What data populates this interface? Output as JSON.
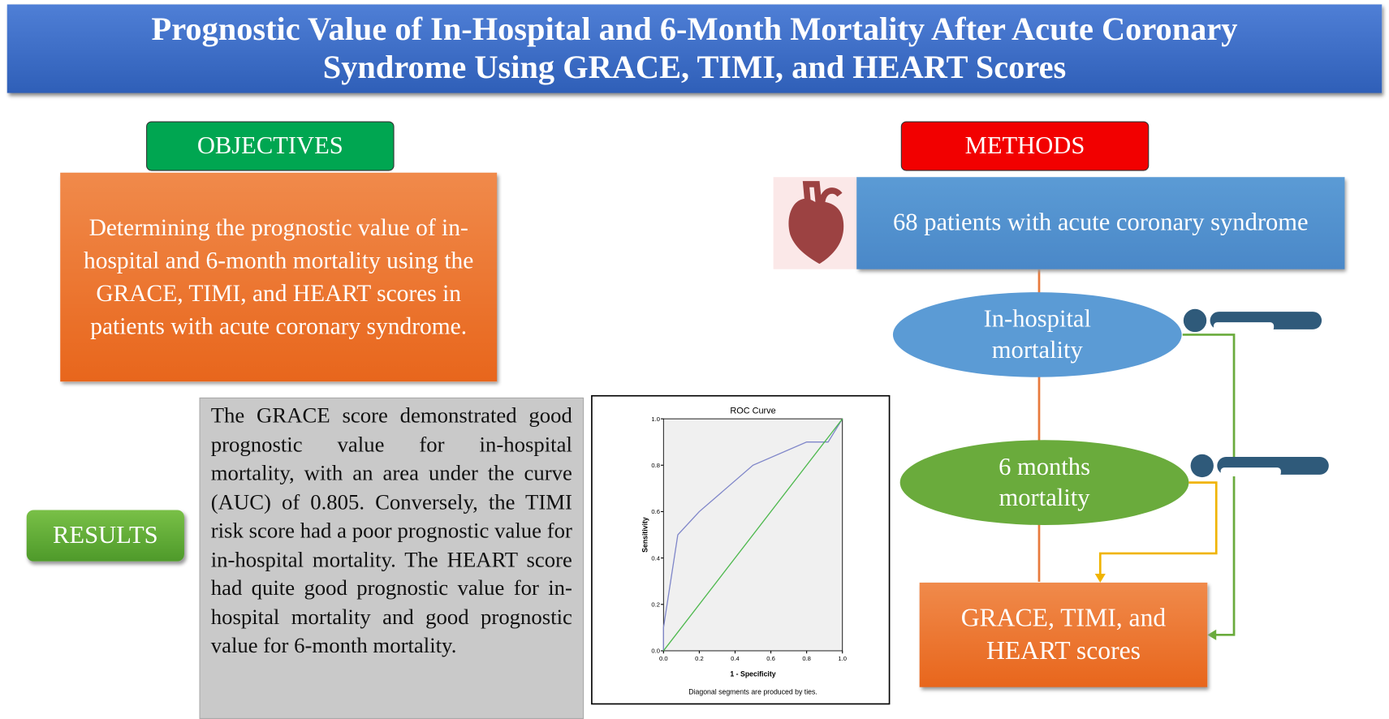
{
  "header": {
    "title": "Prognostic Value of In-Hospital and 6-Month Mortality After Acute Coronary Syndrome Using GRACE, TIMI, and HEART Scores"
  },
  "objectives": {
    "label": "OBJECTIVES",
    "text": "Determining the prognostic value of in-hospital and 6-month mortality using the GRACE, TIMI, and HEART scores in patients with acute coronary syndrome."
  },
  "methods": {
    "label": "METHODS",
    "patients": "68 patients with acute coronary syndrome",
    "outcomes": [
      "In-hospital mortality",
      "6 months mortality"
    ],
    "scores": "GRACE, TIMI, and HEART scores"
  },
  "results": {
    "label": "RESULTS",
    "text": "The GRACE score demonstrated good prognostic value for in-hospital mortality, with an area under the curve (AUC) of 0.805. Conversely, the TIMI risk score had a poor prognostic value for in-hospital mortality. The HEART score had quite good prognostic value for in-hospital mortality and good prognostic value for 6-month mortality."
  },
  "chart_data": {
    "type": "line",
    "title": "ROC Curve",
    "x_label": "1 - Specificity",
    "y_label": "Sensitivity",
    "note": "Diagonal segments are produced by ties.",
    "xlim": [
      0,
      1
    ],
    "ylim": [
      0,
      1
    ],
    "xticks": [
      {
        "value": 0,
        "label": "0.0"
      },
      0.2,
      0.4,
      0.6,
      0.8,
      {
        "value": 1,
        "label": "1.0"
      }
    ],
    "yticks": [
      {
        "value": 0,
        "label": "0.0"
      },
      0.2,
      0.4,
      0.6,
      0.8,
      {
        "value": 1,
        "label": "1.0"
      }
    ],
    "series": [
      {
        "color": "#7f86c9",
        "x": [
          0,
          0,
          0.08,
          0.2,
          0.5,
          0.8,
          0.92,
          1
        ],
        "values": [
          0,
          0.1,
          0.5,
          0.6,
          0.8,
          0.9,
          0.9,
          1
        ]
      },
      {
        "color": "#4cb84c",
        "x": [
          0,
          1
        ],
        "values": [
          0,
          1
        ]
      }
    ]
  }
}
